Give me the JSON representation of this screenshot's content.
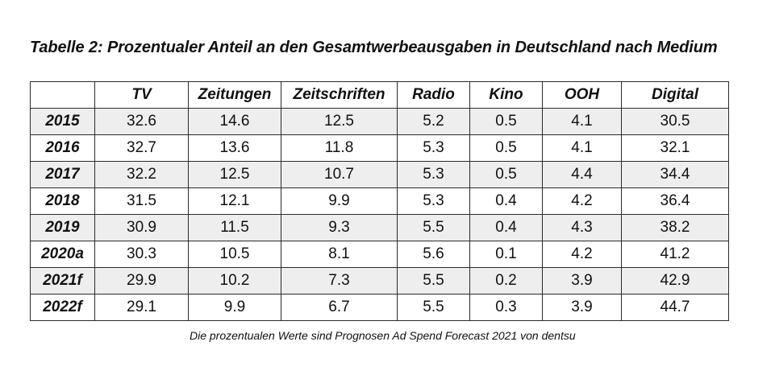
{
  "title": "Tabelle 2: Prozentualer Anteil an den Gesamtwerbeausgaben in Deutschland nach Medium",
  "table": {
    "corner": "",
    "headers": [
      "TV",
      "Zeitungen",
      "Zeitschriften",
      "Radio",
      "Kino",
      "OOH",
      "Digital"
    ],
    "rows": [
      {
        "year": "2015",
        "values": [
          "32.6",
          "14.6",
          "12.5",
          "5.2",
          "0.5",
          "4.1",
          "30.5"
        ]
      },
      {
        "year": "2016",
        "values": [
          "32.7",
          "13.6",
          "11.8",
          "5.3",
          "0.5",
          "4.1",
          "32.1"
        ]
      },
      {
        "year": "2017",
        "values": [
          "32.2",
          "12.5",
          "10.7",
          "5.3",
          "0.5",
          "4.4",
          "34.4"
        ]
      },
      {
        "year": "2018",
        "values": [
          "31.5",
          "12.1",
          "9.9",
          "5.3",
          "0.4",
          "4.2",
          "36.4"
        ]
      },
      {
        "year": "2019",
        "values": [
          "30.9",
          "11.5",
          "9.3",
          "5.5",
          "0.4",
          "4.3",
          "38.2"
        ]
      },
      {
        "year": "2020a",
        "values": [
          "30.3",
          "10.5",
          "8.1",
          "5.6",
          "0.1",
          "4.2",
          "41.2"
        ]
      },
      {
        "year": "2021f",
        "values": [
          "29.9",
          "10.2",
          "7.3",
          "5.5",
          "0.2",
          "3.9",
          "42.9"
        ]
      },
      {
        "year": "2022f",
        "values": [
          "29.1",
          "9.9",
          "6.7",
          "5.5",
          "0.3",
          "3.9",
          "44.7"
        ]
      }
    ]
  },
  "note": "Die prozentualen Werte sind Prognosen Ad Spend Forecast 2021 von dentsu",
  "colors": {
    "shaded_row": "#eeeeee",
    "border": "#2a2a2a"
  }
}
